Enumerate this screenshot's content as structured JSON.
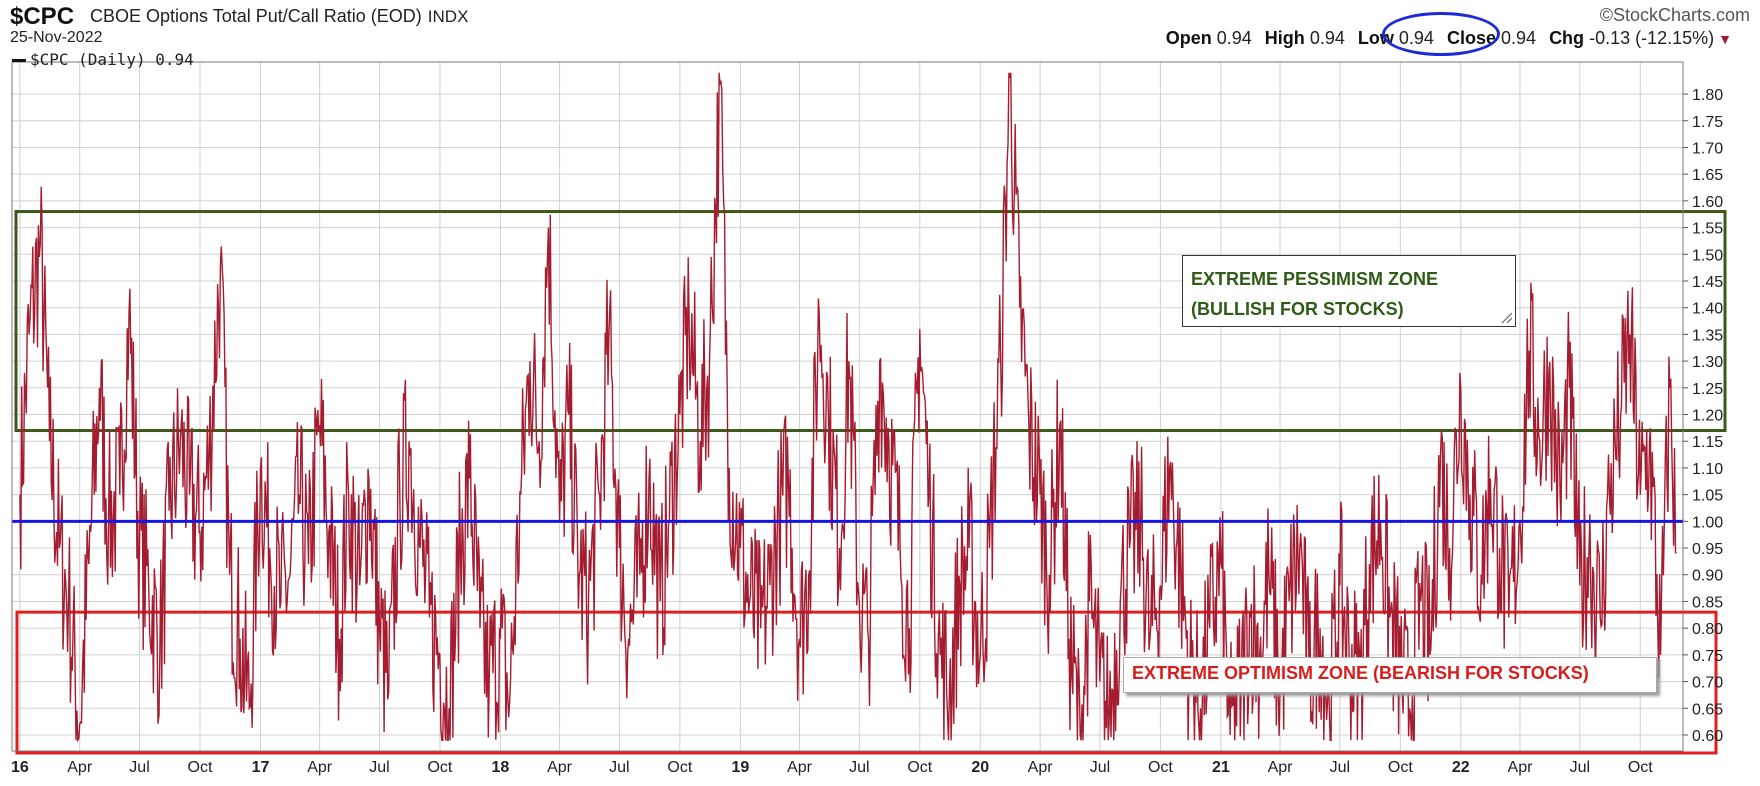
{
  "header": {
    "symbol": "$CPC",
    "full_name": "CBOE Options Total Put/Call Ratio (EOD)",
    "exchange": "INDX",
    "date": "25-Nov-2022",
    "brand": "©StockCharts.com",
    "open_label": "Open",
    "open": "0.94",
    "high_label": "High",
    "high": "0.94",
    "low_label": "Low",
    "low": "0.94",
    "close_label": "Close",
    "close": "0.94",
    "chg_label": "Chg",
    "chg": "-0.13 (-12.15%)"
  },
  "legend": {
    "text": "$CPC (Daily) 0.94"
  },
  "annotations": {
    "pessimism_line1": "EXTREME PESSIMISM ZONE",
    "pessimism_line2": "(BULLISH FOR STOCKS)",
    "optimism": "EXTREME OPTIMISM ZONE (BEARISH FOR STOCKS)"
  },
  "colors": {
    "series": "#a51c30",
    "pessimism_zone": "#3b5a1a",
    "optimism_zone": "#e0201e",
    "reference_line": "#1616e0",
    "grid": "#d0d0d0"
  },
  "chart_data": {
    "type": "line",
    "series": [
      {
        "name": "$CPC (Daily)",
        "points": [
          [
            "2016-01-01",
            1.05
          ],
          [
            "2016-01-15",
            1.35
          ],
          [
            "2016-02-01",
            1.52
          ],
          [
            "2016-02-15",
            1.15
          ],
          [
            "2016-03-01",
            0.95
          ],
          [
            "2016-03-15",
            0.85
          ],
          [
            "2016-04-01",
            0.62
          ],
          [
            "2016-04-15",
            0.92
          ],
          [
            "2016-05-01",
            1.25
          ],
          [
            "2016-05-15",
            1.0
          ],
          [
            "2016-06-01",
            1.05
          ],
          [
            "2016-06-15",
            1.39
          ],
          [
            "2016-07-01",
            0.95
          ],
          [
            "2016-07-15",
            0.88
          ],
          [
            "2016-08-01",
            0.76
          ],
          [
            "2016-08-15",
            1.02
          ],
          [
            "2016-09-01",
            1.15
          ],
          [
            "2016-09-15",
            1.05
          ],
          [
            "2016-10-01",
            0.98
          ],
          [
            "2016-10-15",
            1.12
          ],
          [
            "2016-11-01",
            1.48
          ],
          [
            "2016-11-15",
            0.9
          ],
          [
            "2016-12-01",
            0.78
          ],
          [
            "2016-12-15",
            0.65
          ],
          [
            "2017-01-01",
            1.1
          ],
          [
            "2017-01-15",
            0.95
          ],
          [
            "2017-02-01",
            0.85
          ],
          [
            "2017-02-15",
            0.9
          ],
          [
            "2017-03-01",
            1.05
          ],
          [
            "2017-03-15",
            0.92
          ],
          [
            "2017-04-01",
            1.18
          ],
          [
            "2017-04-15",
            0.98
          ],
          [
            "2017-05-01",
            0.78
          ],
          [
            "2017-05-15",
            1.05
          ],
          [
            "2017-06-01",
            0.88
          ],
          [
            "2017-06-15",
            1.08
          ],
          [
            "2017-07-01",
            0.8
          ],
          [
            "2017-07-15",
            0.68
          ],
          [
            "2017-08-01",
            1.05
          ],
          [
            "2017-08-15",
            1.15
          ],
          [
            "2017-09-01",
            0.95
          ],
          [
            "2017-09-15",
            0.82
          ],
          [
            "2017-10-01",
            0.75
          ],
          [
            "2017-10-15",
            0.65
          ],
          [
            "2017-11-01",
            0.95
          ],
          [
            "2017-11-15",
            1.08
          ],
          [
            "2017-12-01",
            0.8
          ],
          [
            "2017-12-15",
            0.7
          ],
          [
            "2018-01-01",
            0.78
          ],
          [
            "2018-01-15",
            0.66
          ],
          [
            "2018-02-01",
            1.05
          ],
          [
            "2018-02-15",
            1.3
          ],
          [
            "2018-03-01",
            1.15
          ],
          [
            "2018-03-15",
            1.55
          ],
          [
            "2018-04-01",
            1.0
          ],
          [
            "2018-04-15",
            1.2
          ],
          [
            "2018-05-01",
            0.9
          ],
          [
            "2018-05-15",
            0.85
          ],
          [
            "2018-06-01",
            1.05
          ],
          [
            "2018-06-15",
            1.35
          ],
          [
            "2018-07-01",
            0.95
          ],
          [
            "2018-07-15",
            0.78
          ],
          [
            "2018-08-01",
            0.9
          ],
          [
            "2018-08-15",
            1.08
          ],
          [
            "2018-09-01",
            0.85
          ],
          [
            "2018-09-15",
            1.0
          ],
          [
            "2018-10-01",
            1.2
          ],
          [
            "2018-10-15",
            1.38
          ],
          [
            "2018-11-01",
            1.15
          ],
          [
            "2018-11-15",
            1.3
          ],
          [
            "2018-12-01",
            1.82
          ],
          [
            "2018-12-15",
            1.1
          ],
          [
            "2019-01-01",
            0.95
          ],
          [
            "2019-01-15",
            0.85
          ],
          [
            "2019-02-01",
            0.8
          ],
          [
            "2019-02-15",
            0.88
          ],
          [
            "2019-03-01",
            1.0
          ],
          [
            "2019-03-15",
            1.08
          ],
          [
            "2019-04-01",
            0.78
          ],
          [
            "2019-04-15",
            0.9
          ],
          [
            "2019-05-01",
            1.39
          ],
          [
            "2019-05-15",
            1.2
          ],
          [
            "2019-06-01",
            0.95
          ],
          [
            "2019-06-15",
            1.3
          ],
          [
            "2019-07-01",
            0.85
          ],
          [
            "2019-07-15",
            0.78
          ],
          [
            "2019-08-01",
            1.3
          ],
          [
            "2019-08-15",
            1.15
          ],
          [
            "2019-09-01",
            0.95
          ],
          [
            "2019-09-15",
            0.8
          ],
          [
            "2019-10-01",
            1.36
          ],
          [
            "2019-10-15",
            1.05
          ],
          [
            "2019-11-01",
            0.75
          ],
          [
            "2019-11-15",
            0.68
          ],
          [
            "2019-12-01",
            0.88
          ],
          [
            "2019-12-15",
            0.95
          ],
          [
            "2020-01-01",
            0.75
          ],
          [
            "2020-01-15",
            0.95
          ],
          [
            "2020-02-01",
            1.3
          ],
          [
            "2020-02-15",
            1.83
          ],
          [
            "2020-03-01",
            1.4
          ],
          [
            "2020-03-15",
            1.18
          ],
          [
            "2020-04-01",
            1.05
          ],
          [
            "2020-04-15",
            0.9
          ],
          [
            "2020-05-01",
            1.18
          ],
          [
            "2020-05-15",
            0.78
          ],
          [
            "2020-06-01",
            0.6
          ],
          [
            "2020-06-15",
            0.85
          ],
          [
            "2020-07-01",
            0.7
          ],
          [
            "2020-07-15",
            0.62
          ],
          [
            "2020-08-01",
            0.85
          ],
          [
            "2020-08-15",
            0.95
          ],
          [
            "2020-09-01",
            1.0
          ],
          [
            "2020-09-15",
            0.78
          ],
          [
            "2020-10-01",
            0.88
          ],
          [
            "2020-10-15",
            1.1
          ],
          [
            "2020-11-01",
            0.9
          ],
          [
            "2020-11-15",
            0.72
          ],
          [
            "2020-12-01",
            0.65
          ],
          [
            "2020-12-15",
            0.8
          ],
          [
            "2021-01-01",
            0.92
          ],
          [
            "2021-01-15",
            0.6
          ],
          [
            "2021-02-01",
            0.7
          ],
          [
            "2021-02-15",
            0.82
          ],
          [
            "2021-03-01",
            0.75
          ],
          [
            "2021-03-15",
            0.9
          ],
          [
            "2021-04-01",
            0.68
          ],
          [
            "2021-04-15",
            0.85
          ],
          [
            "2021-05-01",
            0.95
          ],
          [
            "2021-05-15",
            0.72
          ],
          [
            "2021-06-01",
            0.8
          ],
          [
            "2021-06-15",
            0.65
          ],
          [
            "2021-07-01",
            0.88
          ],
          [
            "2021-07-15",
            0.75
          ],
          [
            "2021-08-01",
            0.7
          ],
          [
            "2021-08-15",
            0.92
          ],
          [
            "2021-09-01",
            1.0
          ],
          [
            "2021-09-15",
            0.82
          ],
          [
            "2021-10-01",
            0.72
          ],
          [
            "2021-10-15",
            0.65
          ],
          [
            "2021-11-01",
            0.85
          ],
          [
            "2021-11-15",
            0.75
          ],
          [
            "2021-12-01",
            1.12
          ],
          [
            "2021-12-15",
            0.95
          ],
          [
            "2022-01-01",
            1.25
          ],
          [
            "2022-01-15",
            1.05
          ],
          [
            "2022-02-01",
            0.9
          ],
          [
            "2022-02-15",
            1.08
          ],
          [
            "2022-03-01",
            0.95
          ],
          [
            "2022-03-15",
            0.82
          ],
          [
            "2022-04-01",
            1.0
          ],
          [
            "2022-04-15",
            1.32
          ],
          [
            "2022-05-01",
            1.15
          ],
          [
            "2022-05-15",
            1.28
          ],
          [
            "2022-06-01",
            1.05
          ],
          [
            "2022-06-15",
            1.25
          ],
          [
            "2022-07-01",
            0.88
          ],
          [
            "2022-07-15",
            0.95
          ],
          [
            "2022-08-01",
            0.82
          ],
          [
            "2022-08-15",
            1.05
          ],
          [
            "2022-09-01",
            1.2
          ],
          [
            "2022-09-15",
            1.35
          ],
          [
            "2022-10-01",
            1.05
          ],
          [
            "2022-10-15",
            1.15
          ],
          [
            "2022-11-01",
            0.75
          ],
          [
            "2022-11-15",
            1.25
          ],
          [
            "2022-11-25",
            0.94
          ]
        ]
      }
    ],
    "x_tick_labels": [
      {
        "date": "2016-01-01",
        "label": "16",
        "major": true
      },
      {
        "date": "2016-04-01",
        "label": "Apr"
      },
      {
        "date": "2016-07-01",
        "label": "Jul"
      },
      {
        "date": "2016-10-01",
        "label": "Oct"
      },
      {
        "date": "2017-01-01",
        "label": "17",
        "major": true
      },
      {
        "date": "2017-04-01",
        "label": "Apr"
      },
      {
        "date": "2017-07-01",
        "label": "Jul"
      },
      {
        "date": "2017-10-01",
        "label": "Oct"
      },
      {
        "date": "2018-01-01",
        "label": "18",
        "major": true
      },
      {
        "date": "2018-04-01",
        "label": "Apr"
      },
      {
        "date": "2018-07-01",
        "label": "Jul"
      },
      {
        "date": "2018-10-01",
        "label": "Oct"
      },
      {
        "date": "2019-01-01",
        "label": "19",
        "major": true
      },
      {
        "date": "2019-04-01",
        "label": "Apr"
      },
      {
        "date": "2019-07-01",
        "label": "Jul"
      },
      {
        "date": "2019-10-01",
        "label": "Oct"
      },
      {
        "date": "2020-01-01",
        "label": "20",
        "major": true
      },
      {
        "date": "2020-04-01",
        "label": "Apr"
      },
      {
        "date": "2020-07-01",
        "label": "Jul"
      },
      {
        "date": "2020-10-01",
        "label": "Oct"
      },
      {
        "date": "2021-01-01",
        "label": "21",
        "major": true
      },
      {
        "date": "2021-04-01",
        "label": "Apr"
      },
      {
        "date": "2021-07-01",
        "label": "Jul"
      },
      {
        "date": "2021-10-01",
        "label": "Oct"
      },
      {
        "date": "2022-01-01",
        "label": "22",
        "major": true
      },
      {
        "date": "2022-04-01",
        "label": "Apr"
      },
      {
        "date": "2022-07-01",
        "label": "Jul"
      },
      {
        "date": "2022-10-01",
        "label": "Oct"
      }
    ],
    "y_ticks": [
      "0.60",
      "0.65",
      "0.70",
      "0.75",
      "0.80",
      "0.85",
      "0.90",
      "0.95",
      "1.00",
      "1.05",
      "1.10",
      "1.15",
      "1.20",
      "1.25",
      "1.30",
      "1.35",
      "1.40",
      "1.45",
      "1.50",
      "1.55",
      "1.60",
      "1.65",
      "1.70",
      "1.75",
      "1.80"
    ],
    "ylim": [
      0.57,
      1.86
    ],
    "xlim": [
      "2015-12-20",
      "2022-12-05"
    ],
    "y_axis_side": "right",
    "grid": true,
    "reference_lines": [
      {
        "y": 1.0
      }
    ],
    "zones": [
      {
        "name": "pessimism",
        "y_min": 1.17,
        "y_max": 1.58
      },
      {
        "name": "optimism",
        "y_min": 0.57,
        "y_max": 0.83
      }
    ]
  }
}
